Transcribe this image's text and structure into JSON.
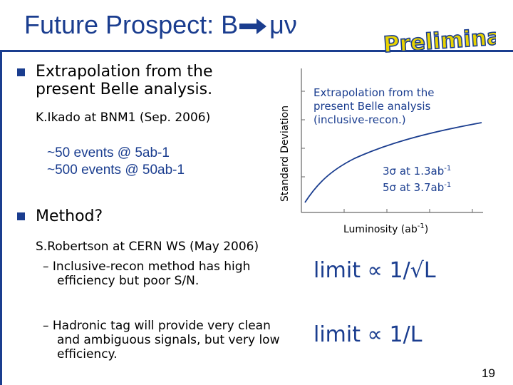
{
  "title": {
    "prefix": "Future Prospect: B",
    "suffix": "μν"
  },
  "stamp": {
    "text": "Preliminary"
  },
  "bullets": [
    {
      "text_line1": "Extrapolation from the",
      "text_line2": "present Belle analysis."
    },
    {
      "text": "Method?"
    }
  ],
  "citation1": "K.Ikado at BNM1 (Sep. 2006)",
  "events": [
    "~50 events @ 5ab-1",
    "~500 events @ 50ab-1"
  ],
  "citation2": "S.Robertson at CERN WS (May 2006)",
  "dashes": [
    {
      "line1": "– Inclusive-recon method has high",
      "line2": "efficiency but poor S/N."
    },
    {
      "line1": "– Hadronic tag will provide very clean",
      "line2": "and ambiguous signals, but very low",
      "line3": "efficiency."
    }
  ],
  "plot": {
    "ylabel": "Standard Deviation",
    "xlabel_main": "Luminosity (ab",
    "xlabel_sup": "-1",
    "xlabel_close": ")",
    "annotation": [
      "Extrapolation from the",
      "present Belle analysis",
      "(inclusive-recon.)"
    ],
    "sig3": {
      "label": "3σ at 1.3ab",
      "sup": "-1"
    },
    "sig5": {
      "label": "5σ at 3.7ab",
      "sup": "-1"
    }
  },
  "formula1": {
    "lhs": "limit",
    "rel": "∝",
    "rhs": "1/√L"
  },
  "formula2": {
    "lhs": "limit",
    "rel": "∝",
    "rhs": "1/L"
  },
  "page_number": "19",
  "colors": {
    "accent": "#1a3d8f",
    "stamp_fill": "#e9d300",
    "stamp_stroke": "#1a3d8f",
    "curve": "#1a3d8f"
  }
}
